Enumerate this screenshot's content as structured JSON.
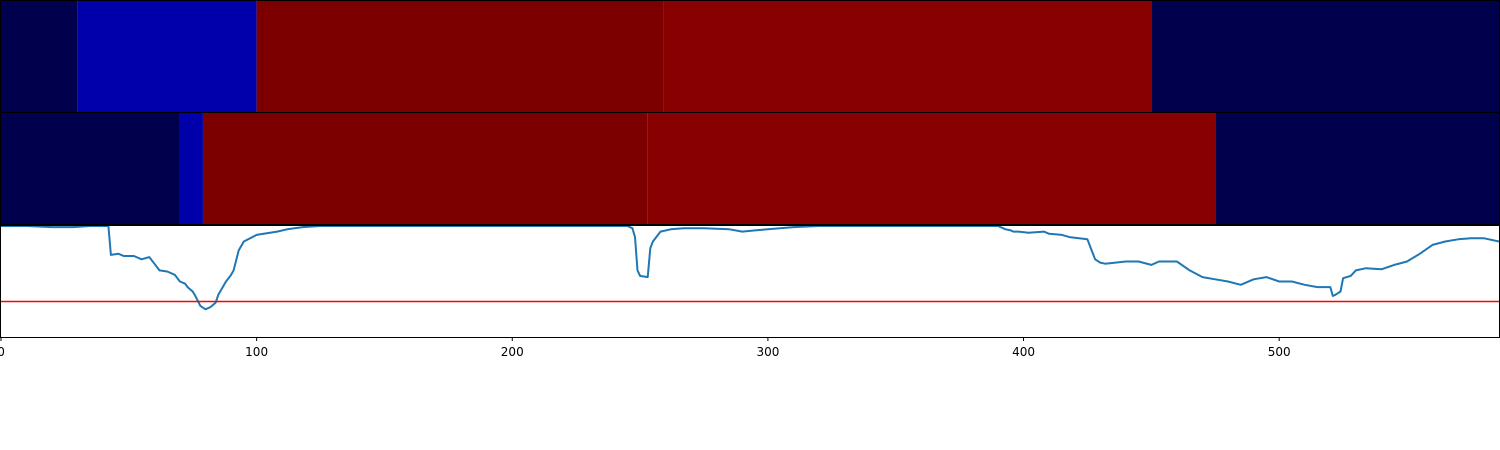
{
  "chart_data": {
    "type": "line",
    "title": "",
    "xlabel": "",
    "ylabel": "",
    "xlim": [
      0,
      586
    ],
    "ylim": [
      0,
      1
    ],
    "grid": false,
    "legend": "none",
    "x_ticks": [
      0,
      100,
      200,
      300,
      400,
      500
    ],
    "colors": {
      "line": "#1f77b4",
      "threshold": "#ff0000",
      "low": "#00004c",
      "mid": "#0000aa",
      "high_a": "#7c0000",
      "high_b": "#880000"
    },
    "segment_bands": [
      {
        "segments": [
          {
            "start": 0,
            "end": 30,
            "color": "#00004c"
          },
          {
            "start": 30,
            "end": 100,
            "color": "#0000aa"
          },
          {
            "start": 100,
            "end": 259,
            "color": "#7c0000"
          },
          {
            "start": 259,
            "end": 450,
            "color": "#880000"
          },
          {
            "start": 450,
            "end": 586,
            "color": "#00004c"
          }
        ]
      },
      {
        "segments": [
          {
            "start": 0,
            "end": 70,
            "color": "#00004c"
          },
          {
            "start": 70,
            "end": 79,
            "color": "#0000aa"
          },
          {
            "start": 79,
            "end": 253,
            "color": "#7c0000"
          },
          {
            "start": 253,
            "end": 475,
            "color": "#880000"
          },
          {
            "start": 475,
            "end": 586,
            "color": "#00004c"
          }
        ]
      }
    ],
    "threshold": 0.32,
    "series": [
      {
        "x": [
          0,
          10,
          20,
          28,
          35,
          42,
          43,
          46,
          48,
          52,
          55,
          58,
          60,
          62,
          65,
          68,
          70,
          72,
          73,
          75,
          76,
          78,
          80,
          82,
          84,
          85,
          88,
          90,
          91,
          93,
          95,
          100,
          108,
          112,
          118,
          125,
          135,
          150,
          170,
          190,
          210,
          230,
          240,
          245,
          247,
          248,
          249,
          250,
          253,
          254,
          255,
          258,
          262,
          267,
          275,
          285,
          290,
          295,
          300,
          310,
          320,
          340,
          360,
          380,
          390,
          393,
          395,
          396,
          398,
          402,
          408,
          410,
          415,
          418,
          425,
          428,
          430,
          432,
          440,
          445,
          450,
          453,
          460,
          465,
          470,
          475,
          480,
          485,
          490,
          495,
          500,
          505,
          510,
          515,
          518,
          520,
          521,
          522,
          524,
          525,
          528,
          530,
          534,
          540,
          545,
          550,
          555,
          560,
          565,
          570,
          575,
          580,
          586
        ],
        "y": [
          1.0,
          1.0,
          0.99,
          0.99,
          1.0,
          1.0,
          0.74,
          0.75,
          0.73,
          0.73,
          0.7,
          0.72,
          0.66,
          0.6,
          0.59,
          0.56,
          0.5,
          0.48,
          0.45,
          0.41,
          0.37,
          0.28,
          0.25,
          0.27,
          0.31,
          0.38,
          0.5,
          0.56,
          0.6,
          0.78,
          0.86,
          0.92,
          0.95,
          0.97,
          0.99,
          1.0,
          1.0,
          1.0,
          1.0,
          1.0,
          1.0,
          1.0,
          1.0,
          1.0,
          0.98,
          0.9,
          0.6,
          0.55,
          0.54,
          0.8,
          0.86,
          0.95,
          0.97,
          0.98,
          0.98,
          0.97,
          0.95,
          0.96,
          0.97,
          0.99,
          1.0,
          1.0,
          1.0,
          1.0,
          1.0,
          0.97,
          0.96,
          0.95,
          0.95,
          0.94,
          0.95,
          0.93,
          0.92,
          0.9,
          0.88,
          0.7,
          0.67,
          0.66,
          0.68,
          0.68,
          0.65,
          0.68,
          0.68,
          0.6,
          0.54,
          0.52,
          0.5,
          0.47,
          0.52,
          0.54,
          0.5,
          0.5,
          0.47,
          0.45,
          0.45,
          0.45,
          0.37,
          0.38,
          0.41,
          0.53,
          0.55,
          0.6,
          0.62,
          0.61,
          0.65,
          0.68,
          0.75,
          0.83,
          0.86,
          0.88,
          0.89,
          0.89,
          0.86
        ]
      }
    ]
  }
}
